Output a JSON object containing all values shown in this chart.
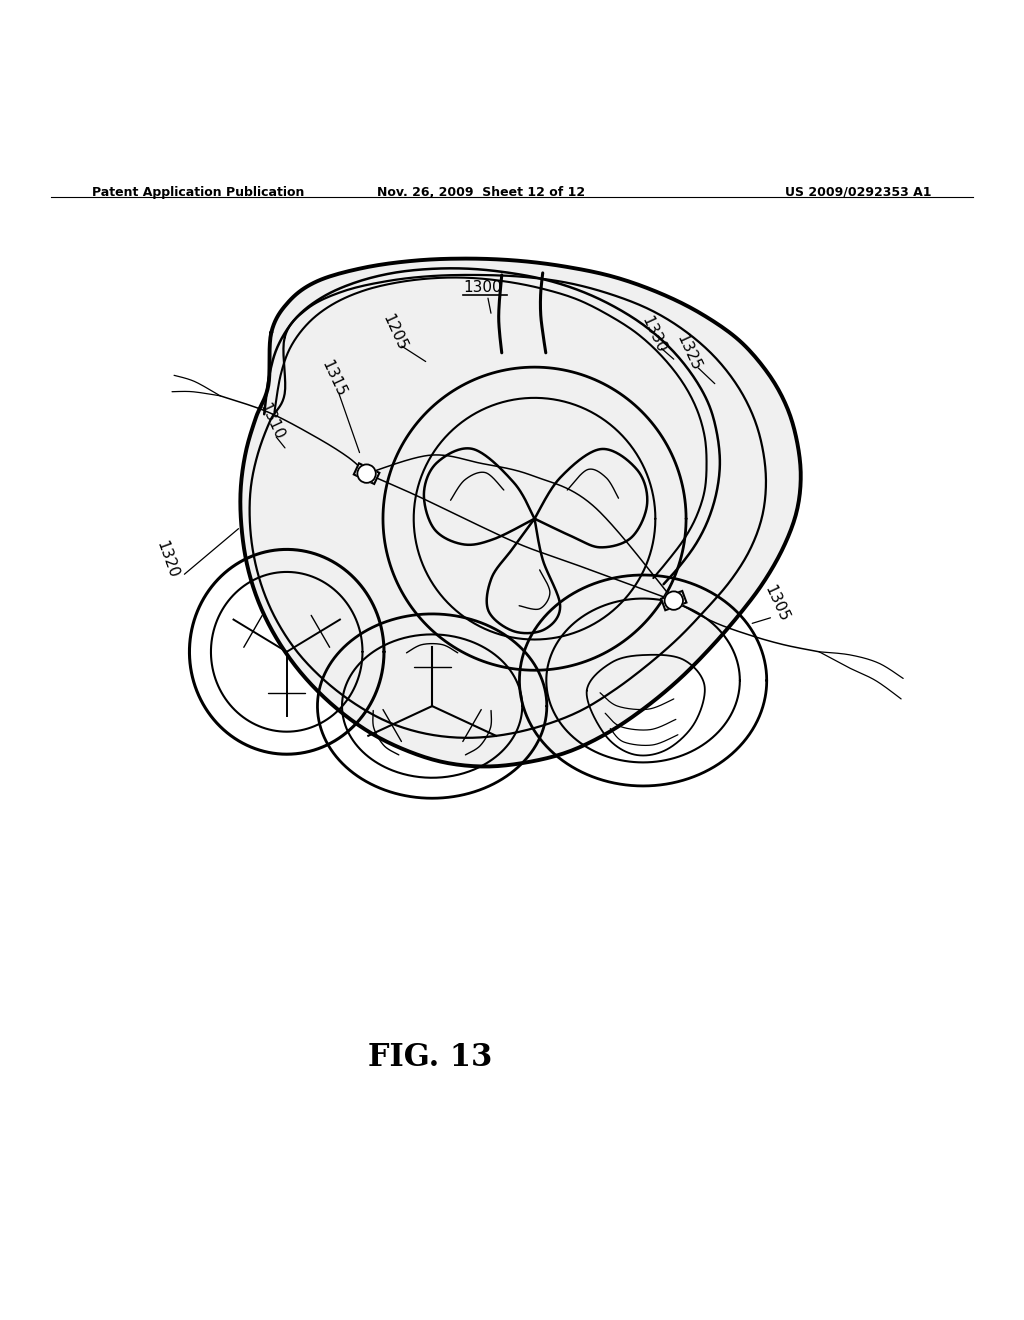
{
  "bg_color": "#ffffff",
  "header_left": "Patent Application Publication",
  "header_mid": "Nov. 26, 2009  Sheet 12 of 12",
  "header_right": "US 2009/0292353 A1",
  "fig_label": "FIG. 13"
}
